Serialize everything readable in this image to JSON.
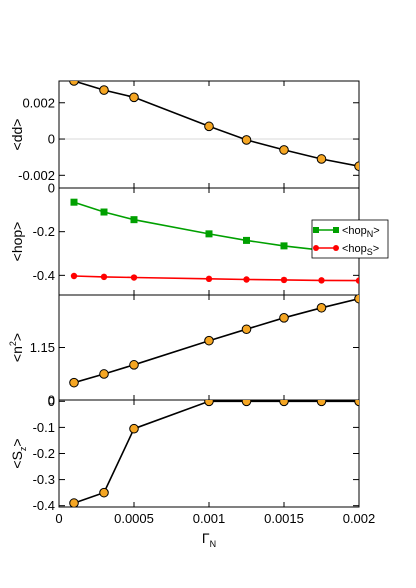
{
  "chart_data": {
    "type": "line",
    "x_axis": {
      "label": "Γ",
      "label_sub": "N",
      "range": [
        0,
        0.002
      ],
      "ticks": [
        {
          "value": 0,
          "label": "0"
        },
        {
          "value": 0.0005,
          "label": "0.0005"
        },
        {
          "value": 0.001,
          "label": "0.001"
        },
        {
          "value": 0.0015,
          "label": "0.0015"
        },
        {
          "value": 0.002,
          "label": "0.002"
        }
      ]
    },
    "panels": [
      {
        "id": "dd",
        "ylabel": "<dd>",
        "ylim": [
          -0.0027,
          0.0032
        ],
        "zero_line": true,
        "ticks": [
          {
            "value": 0.002,
            "label": "0.002"
          },
          {
            "value": 0,
            "label": "0"
          },
          {
            "value": -0.002,
            "label": "-0.002"
          }
        ],
        "series": [
          {
            "color": "#000000",
            "marker": "circle",
            "marker_fill": "#f5a623",
            "x": [
              0.0001,
              0.0003,
              0.0005,
              0.001,
              0.00125,
              0.0015,
              0.00175,
              0.002
            ],
            "y": [
              0.0032,
              0.0027,
              0.0023,
              0.0007,
              -5e-05,
              -0.0006,
              -0.0011,
              -0.0015
            ]
          }
        ]
      },
      {
        "id": "hop",
        "ylabel": "<hop>",
        "ylim": [
          -0.49,
          0
        ],
        "ticks": [
          {
            "value": 0,
            "label": "0"
          },
          {
            "value": -0.2,
            "label": "-0.2"
          },
          {
            "value": -0.4,
            "label": "-0.4"
          }
        ],
        "legend_position": "right",
        "series": [
          {
            "name": "<hop",
            "name_sub": "N",
            "name_end": ">",
            "color": "#00a000",
            "marker": "square",
            "marker_fill": "#00a000",
            "x": [
              0.0001,
              0.0003,
              0.0005,
              0.001,
              0.00125,
              0.0015,
              0.00175,
              0.002
            ],
            "y": [
              -0.065,
              -0.11,
              -0.145,
              -0.21,
              -0.24,
              -0.265,
              -0.285,
              -0.3
            ]
          },
          {
            "name": "<hop",
            "name_sub": "S",
            "name_end": ">",
            "color": "#ff0000",
            "marker": "circle",
            "marker_fill": "#ff0000",
            "x": [
              0.0001,
              0.0003,
              0.0005,
              0.001,
              0.00125,
              0.0015,
              0.00175,
              0.002
            ],
            "y": [
              -0.403,
              -0.407,
              -0.41,
              -0.416,
              -0.419,
              -0.421,
              -0.423,
              -0.424
            ]
          }
        ]
      },
      {
        "id": "n2",
        "ylabel": "<n",
        "ylabel_sup": "2",
        "ylabel_end": ">",
        "ylim": [
          0,
          2.3
        ],
        "ticks": [
          {
            "value": 1.15,
            "label": "1.15"
          },
          {
            "value": 0,
            "label": "0"
          }
        ],
        "series": [
          {
            "color": "#000000",
            "marker": "circle",
            "marker_fill": "#f5a623",
            "x": [
              0.0001,
              0.0003,
              0.0005,
              0.001,
              0.00125,
              0.0015,
              0.00175,
              0.002
            ],
            "y": [
              0.38,
              0.57,
              0.77,
              1.3,
              1.55,
              1.8,
              2.02,
              2.22
            ]
          }
        ]
      },
      {
        "id": "sz",
        "ylabel": "<S",
        "ylabel_sub": "z",
        "ylabel_end": ">",
        "ylim": [
          -0.405,
          0.005
        ],
        "ticks": [
          {
            "value": 0,
            "label": "0"
          },
          {
            "value": -0.1,
            "label": "-0.1"
          },
          {
            "value": -0.2,
            "label": "-0.2"
          },
          {
            "value": -0.3,
            "label": "-0.3"
          },
          {
            "value": -0.4,
            "label": "-0.4"
          }
        ],
        "series": [
          {
            "color": "#000000",
            "marker": "circle",
            "marker_fill": "#f5a623",
            "x": [
              0.0001,
              0.0003,
              0.0005,
              0.001,
              0.00125,
              0.0015,
              0.00175,
              0.002
            ],
            "y": [
              -0.39,
              -0.35,
              -0.105,
              0,
              0,
              0,
              0,
              0
            ]
          }
        ]
      }
    ]
  }
}
